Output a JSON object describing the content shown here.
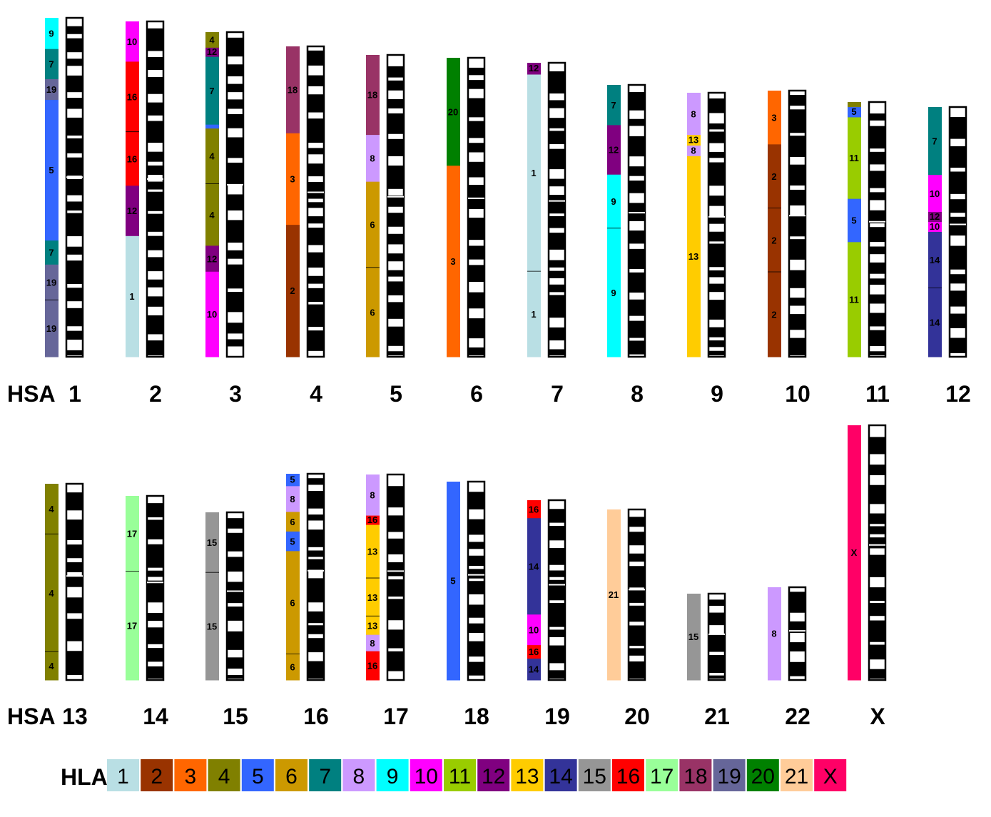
{
  "row_prefix": "HSA",
  "legend_title": "HLA",
  "legend": [
    {
      "label": "1",
      "color": "#b9dfe4"
    },
    {
      "label": "2",
      "color": "#993300"
    },
    {
      "label": "3",
      "color": "#ff6600"
    },
    {
      "label": "4",
      "color": "#808000"
    },
    {
      "label": "5",
      "color": "#3366ff"
    },
    {
      "label": "6",
      "color": "#cc9900"
    },
    {
      "label": "7",
      "color": "#008080"
    },
    {
      "label": "8",
      "color": "#cc99ff"
    },
    {
      "label": "9",
      "color": "#00ffff"
    },
    {
      "label": "10",
      "color": "#ff00ff"
    },
    {
      "label": "11",
      "color": "#99cc00"
    },
    {
      "label": "12",
      "color": "#800080"
    },
    {
      "label": "13",
      "color": "#ffcc00"
    },
    {
      "label": "14",
      "color": "#333399"
    },
    {
      "label": "15",
      "color": "#969696"
    },
    {
      "label": "16",
      "color": "#ff0000"
    },
    {
      "label": "17",
      "color": "#99ff99"
    },
    {
      "label": "18",
      "color": "#993366"
    },
    {
      "label": "19",
      "color": "#666699"
    },
    {
      "label": "20",
      "color": "#008000"
    },
    {
      "label": "21",
      "color": "#ffcc99"
    },
    {
      "label": "X",
      "color": "#ff0066"
    }
  ],
  "chromosomes": [
    {
      "hsa": "1",
      "segments": [
        {
          "hla": "9",
          "frac": 0.092
        },
        {
          "hla": "7",
          "frac": 0.089
        },
        {
          "hla": "19",
          "frac": 0.061
        },
        {
          "hla": "5",
          "frac": 0.415
        },
        {
          "hla": "7",
          "frac": 0.071
        },
        {
          "hla": "19",
          "frac": 0.105,
          "break_after": true
        },
        {
          "hla": "19",
          "frac": 0.167
        }
      ]
    },
    {
      "hsa": "2",
      "segments": [
        {
          "hla": "10",
          "frac": 0.12
        },
        {
          "hla": "16",
          "frac": 0.21,
          "break_after": true
        },
        {
          "hla": "16",
          "frac": 0.16
        },
        {
          "hla": "12",
          "frac": 0.15
        },
        {
          "hla": "1",
          "frac": 0.36
        }
      ]
    },
    {
      "hsa": "3",
      "segments": [
        {
          "hla": "4",
          "frac": 0.048
        },
        {
          "hla": "12",
          "frac": 0.028
        },
        {
          "hla": "7",
          "frac": 0.209
        },
        {
          "hla": "5",
          "frac": 0.012
        },
        {
          "hla": "4",
          "frac": 0.171,
          "break_after": true
        },
        {
          "hla": "4",
          "frac": 0.19
        },
        {
          "hla": "12",
          "frac": 0.08
        },
        {
          "hla": "10",
          "frac": 0.262
        }
      ]
    },
    {
      "hsa": "4",
      "segments": [
        {
          "hla": "18",
          "frac": 0.28
        },
        {
          "hla": "3",
          "frac": 0.295
        },
        {
          "hla": "2",
          "frac": 0.425
        }
      ]
    },
    {
      "hsa": "5",
      "segments": [
        {
          "hla": "18",
          "frac": 0.265
        },
        {
          "hla": "8",
          "frac": 0.155
        },
        {
          "hla": "6",
          "frac": 0.285,
          "break_after": true
        },
        {
          "hla": "6",
          "frac": 0.295
        }
      ]
    },
    {
      "hsa": "6",
      "segments": [
        {
          "hla": "20",
          "frac": 0.361
        },
        {
          "hla": "3",
          "frac": 0.639
        }
      ]
    },
    {
      "hsa": "7",
      "segments": [
        {
          "hla": "12",
          "frac": 0.04
        },
        {
          "hla": "1",
          "frac": 0.67,
          "break_after": true
        },
        {
          "hla": "1",
          "frac": 0.29
        }
      ]
    },
    {
      "hsa": "8",
      "segments": [
        {
          "hla": "7",
          "frac": 0.148
        },
        {
          "hla": "12",
          "frac": 0.182
        },
        {
          "hla": "9",
          "frac": 0.198,
          "break_after": true
        },
        {
          "hla": "9",
          "frac": 0.472
        }
      ]
    },
    {
      "hsa": "9",
      "segments": [
        {
          "hla": "8",
          "frac": 0.16
        },
        {
          "hla": "13",
          "frac": 0.04
        },
        {
          "hla": "8",
          "frac": 0.04
        },
        {
          "hla": "13",
          "frac": 0.76
        }
      ]
    },
    {
      "hsa": "10",
      "segments": [
        {
          "hla": "3",
          "frac": 0.202
        },
        {
          "hla": "2",
          "frac": 0.24,
          "break_after": true
        },
        {
          "hla": "2",
          "frac": 0.24,
          "break_after": true
        },
        {
          "hla": "2",
          "frac": 0.318
        }
      ]
    },
    {
      "hsa": "11",
      "segments": [
        {
          "hla": "4",
          "frac": 0.02
        },
        {
          "hla": "5",
          "frac": 0.04
        },
        {
          "hla": "11",
          "frac": 0.32
        },
        {
          "hla": "5",
          "frac": 0.17
        },
        {
          "hla": "11",
          "frac": 0.45
        }
      ]
    },
    {
      "hsa": "12",
      "segments": [
        {
          "hla": "7",
          "frac": 0.272
        },
        {
          "hla": "10",
          "frac": 0.148
        },
        {
          "hla": "12",
          "frac": 0.04
        },
        {
          "hla": "10",
          "frac": 0.04
        },
        {
          "hla": "14",
          "frac": 0.225,
          "break_after": true
        },
        {
          "hla": "14",
          "frac": 0.275
        }
      ]
    },
    {
      "hsa": "13",
      "segments": [
        {
          "hla": "4",
          "frac": 0.257,
          "break_after": true
        },
        {
          "hla": "4",
          "frac": 0.6,
          "break_after": true
        },
        {
          "hla": "4",
          "frac": 0.143
        }
      ]
    },
    {
      "hsa": "14",
      "segments": [
        {
          "hla": "17",
          "frac": 0.41,
          "break_after": true
        },
        {
          "hla": "17",
          "frac": 0.59
        }
      ]
    },
    {
      "hsa": "15",
      "segments": [
        {
          "hla": "15",
          "frac": 0.36,
          "break_after": true
        },
        {
          "hla": "15",
          "frac": 0.64
        }
      ]
    },
    {
      "hsa": "16",
      "segments": [
        {
          "hla": "5",
          "frac": 0.06
        },
        {
          "hla": "8",
          "frac": 0.125
        },
        {
          "hla": "6",
          "frac": 0.095
        },
        {
          "hla": "5",
          "frac": 0.095
        },
        {
          "hla": "6",
          "frac": 0.5,
          "break_after": true
        },
        {
          "hla": "6",
          "frac": 0.125
        }
      ]
    },
    {
      "hsa": "17",
      "segments": [
        {
          "hla": "8",
          "frac": 0.2
        },
        {
          "hla": "16",
          "frac": 0.045
        },
        {
          "hla": "13",
          "frac": 0.26,
          "break_after": true
        },
        {
          "hla": "13",
          "frac": 0.185,
          "break_after": true
        },
        {
          "hla": "13",
          "frac": 0.09
        },
        {
          "hla": "8",
          "frac": 0.08
        },
        {
          "hla": "16",
          "frac": 0.14
        }
      ]
    },
    {
      "hsa": "18",
      "segments": [
        {
          "hla": "5",
          "frac": 1.0
        }
      ]
    },
    {
      "hsa": "19",
      "segments": [
        {
          "hla": "16",
          "frac": 0.1
        },
        {
          "hla": "14",
          "frac": 0.536
        },
        {
          "hla": "10",
          "frac": 0.17
        },
        {
          "hla": "16",
          "frac": 0.075
        },
        {
          "hla": "14",
          "frac": 0.119
        }
      ]
    },
    {
      "hsa": "20",
      "segments": [
        {
          "hla": "21",
          "frac": 1.0
        }
      ]
    },
    {
      "hsa": "21",
      "segments": [
        {
          "hla": "15",
          "frac": 1.0
        }
      ]
    },
    {
      "hsa": "22",
      "segments": [
        {
          "hla": "8",
          "frac": 1.0
        }
      ]
    },
    {
      "hsa": "X",
      "segments": [
        {
          "hla": "X",
          "frac": 1.0
        }
      ]
    }
  ]
}
